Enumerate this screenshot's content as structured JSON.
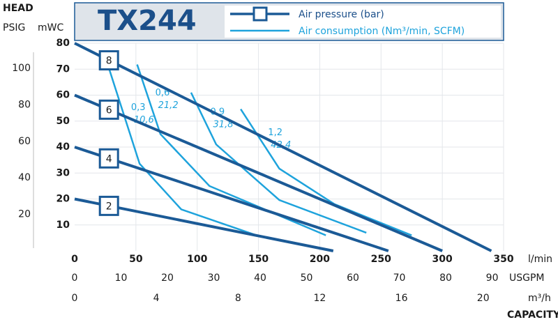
{
  "chart_data": {
    "type": "line",
    "title": "TX244",
    "head_label": "HEAD",
    "y2_label": "PSIG",
    "y_label": "mWC",
    "x_label": "l/min",
    "x2_label": "USGPM",
    "x3_label": "m³/h",
    "capacity_label": "CAPACITY",
    "pressure_legend": "Air pressure (bar)",
    "consumption_legend": "Air consumption (Nm³/min, SCFM)",
    "pressure_color": "#1b5a96",
    "consumption_color": "#1ea3dc",
    "grid": true,
    "xlim": [
      0,
      350
    ],
    "xticks": [
      0,
      50,
      100,
      150,
      200,
      250,
      300,
      350
    ],
    "x2lim": [
      0,
      92.47
    ],
    "x2ticks": [
      0,
      10,
      20,
      30,
      40,
      50,
      60,
      70,
      80,
      90
    ],
    "x3lim": [
      0,
      21
    ],
    "x3ticks": [
      0,
      4,
      8,
      12,
      16,
      20
    ],
    "ylim": [
      0,
      80
    ],
    "yticks": [
      10,
      20,
      30,
      40,
      50,
      60,
      70,
      80
    ],
    "y2lim": [
      0,
      113.79
    ],
    "y2ticks": [
      20,
      40,
      60,
      80,
      100
    ],
    "series": [
      {
        "name": "8",
        "x": [
          0,
          340
        ],
        "values": [
          80,
          0
        ]
      },
      {
        "name": "6",
        "x": [
          0,
          300
        ],
        "values": [
          60,
          0
        ]
      },
      {
        "name": "4",
        "x": [
          0,
          256
        ],
        "values": [
          40,
          0
        ]
      },
      {
        "name": "2",
        "x": [
          0,
          211
        ],
        "values": [
          20,
          0
        ]
      }
    ],
    "consumption": [
      {
        "nm3_min": "0,3",
        "scfm": "10,6",
        "x": [
          27,
          53,
          87,
          148.5
        ],
        "values": [
          71.8,
          33.6,
          16,
          6
        ]
      },
      {
        "nm3_min": "0,6",
        "scfm": "21,2",
        "x": [
          51,
          70,
          110,
          205
        ],
        "values": [
          71.8,
          45,
          25,
          6
        ]
      },
      {
        "nm3_min": "0,9",
        "scfm": "31,8",
        "x": [
          95,
          115.5,
          167,
          238
        ],
        "values": [
          61,
          41,
          19.6,
          7
        ]
      },
      {
        "nm3_min": "1,2",
        "scfm": "42,4",
        "x": [
          135.5,
          167,
          212,
          275
        ],
        "values": [
          54.6,
          31.7,
          18,
          6
        ]
      }
    ]
  }
}
